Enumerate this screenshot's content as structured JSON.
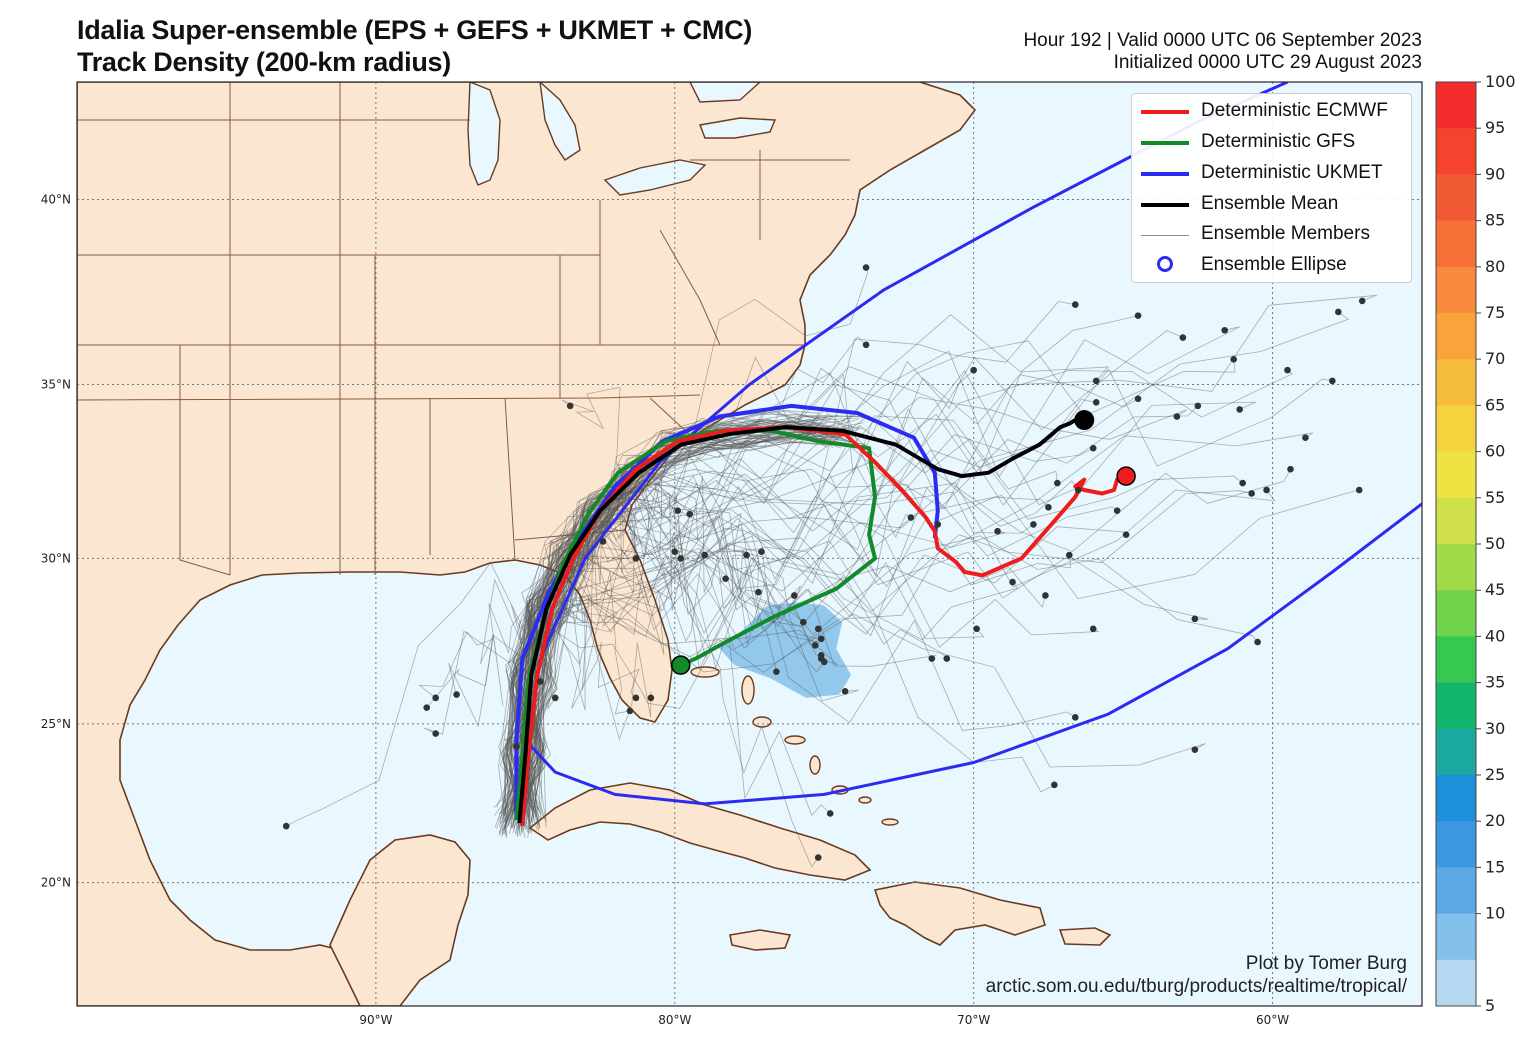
{
  "title": {
    "line1": "Idalia Super-ensemble (EPS + GEFS + UKMET + CMC)",
    "line2": "Track Density (200-km radius)"
  },
  "valid": {
    "line1": "Hour 192 | Valid 0000 UTC 06 September 2023",
    "line2": "Initialized 0000 UTC 29 August 2023"
  },
  "map": {
    "lon_range": [
      -100,
      -55
    ],
    "lat_range": [
      16,
      43
    ],
    "lon_ticks": [
      {
        "lon": -90,
        "label": "90°W"
      },
      {
        "lon": -80,
        "label": "80°W"
      },
      {
        "lon": -70,
        "label": "70°W"
      },
      {
        "lon": -60,
        "label": "60°W"
      }
    ],
    "lat_ticks": [
      {
        "lat": 40,
        "label": "40°N"
      },
      {
        "lat": 35,
        "label": "35°N"
      },
      {
        "lat": 30,
        "label": "30°N"
      },
      {
        "lat": 25,
        "label": "25°N"
      },
      {
        "lat": 20,
        "label": "20°N"
      }
    ],
    "colors": {
      "land": "#fbe7d1",
      "ocean": "#e9f8fe",
      "coast": "#6b3a1e",
      "border": "#8a5a3a",
      "grid": "#777777"
    }
  },
  "legend": {
    "items": [
      {
        "label": "Deterministic ECMWF",
        "color": "#ee1c1c",
        "kind": "line",
        "width": 4
      },
      {
        "label": "Deterministic GFS",
        "color": "#128a2a",
        "kind": "line",
        "width": 4
      },
      {
        "label": "Deterministic UKMET",
        "color": "#2b2bf2",
        "kind": "line",
        "width": 4
      },
      {
        "label": "Ensemble Mean",
        "color": "#000000",
        "kind": "line",
        "width": 4
      },
      {
        "label": "Ensemble Members",
        "color": "#8c8c8c",
        "kind": "line",
        "width": 1
      },
      {
        "label": "Ensemble Ellipse",
        "color": "#2b2bf2",
        "kind": "ring"
      }
    ]
  },
  "tracks": {
    "ecmwf": [
      [
        -85.1,
        21.8
      ],
      [
        -84.9,
        24.0
      ],
      [
        -84.6,
        26.5
      ],
      [
        -84.1,
        28.5
      ],
      [
        -83.4,
        30.0
      ],
      [
        -82.5,
        31.4
      ],
      [
        -81.3,
        32.6
      ],
      [
        -79.9,
        33.4
      ],
      [
        -78.3,
        33.7
      ],
      [
        -76.3,
        33.8
      ],
      [
        -74.3,
        33.6
      ],
      [
        -73.3,
        32.8
      ],
      [
        -72.4,
        32.0
      ],
      [
        -71.6,
        31.2
      ],
      [
        -71.3,
        30.8
      ],
      [
        -71.2,
        30.3
      ],
      [
        -70.6,
        29.9
      ],
      [
        -70.3,
        29.6
      ],
      [
        -69.7,
        29.5
      ],
      [
        -68.4,
        30.0
      ],
      [
        -67.4,
        31.0
      ],
      [
        -66.6,
        31.8
      ],
      [
        -66.3,
        32.3
      ],
      [
        -66.6,
        32.1
      ],
      [
        -66.3,
        32.0
      ],
      [
        -65.7,
        31.9
      ],
      [
        -65.3,
        32.0
      ],
      [
        -65.2,
        32.3
      ],
      [
        -64.9,
        32.4
      ]
    ],
    "gfs": [
      [
        -85.3,
        22.0
      ],
      [
        -85.1,
        24.0
      ],
      [
        -84.9,
        26.3
      ],
      [
        -84.4,
        28.2
      ],
      [
        -83.7,
        29.9
      ],
      [
        -82.9,
        31.3
      ],
      [
        -81.9,
        32.5
      ],
      [
        -80.3,
        33.4
      ],
      [
        -78.6,
        33.7
      ],
      [
        -76.8,
        33.7
      ],
      [
        -75.2,
        33.4
      ],
      [
        -73.5,
        33.2
      ],
      [
        -73.3,
        31.8
      ],
      [
        -73.5,
        30.7
      ],
      [
        -73.3,
        30.0
      ],
      [
        -74.6,
        29.1
      ],
      [
        -76.6,
        28.3
      ],
      [
        -78.3,
        27.5
      ],
      [
        -79.3,
        27.0
      ],
      [
        -79.8,
        26.8
      ]
    ],
    "ukmet": [
      [
        -85.3,
        22.0
      ],
      [
        -85.3,
        24.5
      ],
      [
        -85.1,
        27.0
      ],
      [
        -84.2,
        29.0
      ],
      [
        -83.2,
        30.6
      ],
      [
        -82.0,
        32.1
      ],
      [
        -80.4,
        33.4
      ],
      [
        -78.5,
        34.1
      ],
      [
        -76.1,
        34.4
      ],
      [
        -73.9,
        34.2
      ],
      [
        -72.0,
        33.5
      ],
      [
        -71.3,
        32.5
      ],
      [
        -71.2,
        31.4
      ],
      [
        -71.3,
        30.6
      ]
    ],
    "mean": [
      [
        -85.2,
        21.9
      ],
      [
        -85.0,
        24.0
      ],
      [
        -84.8,
        26.5
      ],
      [
        -84.3,
        28.5
      ],
      [
        -83.5,
        30.1
      ],
      [
        -82.5,
        31.4
      ],
      [
        -81.2,
        32.5
      ],
      [
        -79.8,
        33.3
      ],
      [
        -78.2,
        33.6
      ],
      [
        -76.3,
        33.8
      ],
      [
        -74.4,
        33.7
      ],
      [
        -72.6,
        33.3
      ],
      [
        -71.2,
        32.6
      ],
      [
        -70.4,
        32.4
      ],
      [
        -69.5,
        32.5
      ],
      [
        -68.7,
        32.9
      ],
      [
        -67.8,
        33.3
      ],
      [
        -67.1,
        33.8
      ],
      [
        -66.8,
        33.9
      ],
      [
        -66.4,
        34.1
      ],
      [
        -66.3,
        34.0
      ]
    ],
    "ellipse": [
      [
        -84.9,
        24.4
      ],
      [
        -84.0,
        23.5
      ],
      [
        -82.0,
        22.8
      ],
      [
        -79.0,
        22.5
      ],
      [
        -75.0,
        22.8
      ],
      [
        -70.0,
        23.8
      ],
      [
        -65.5,
        25.3
      ],
      [
        -61.5,
        27.3
      ],
      [
        -58.0,
        29.6
      ],
      [
        -55.0,
        31.6
      ]
    ],
    "ellipse_north": [
      [
        -84.9,
        24.4
      ],
      [
        -84.5,
        27.0
      ],
      [
        -83.0,
        30.0
      ],
      [
        -80.5,
        32.8
      ],
      [
        -77.5,
        35.0
      ],
      [
        -73.0,
        37.6
      ],
      [
        -68.0,
        39.8
      ],
      [
        -62.5,
        42.0
      ],
      [
        -59.5,
        43.0
      ]
    ]
  },
  "points": {
    "ecmwf_end": [
      -64.9,
      32.4
    ],
    "gfs_end": [
      -79.8,
      26.8
    ],
    "mean_end": [
      -66.3,
      34.0
    ],
    "member_ends": [
      [
        -73.6,
        38.2
      ],
      [
        -73.6,
        36.1
      ],
      [
        -70.0,
        35.4
      ],
      [
        -66.6,
        37.2
      ],
      [
        -64.5,
        36.9
      ],
      [
        -63.0,
        36.3
      ],
      [
        -61.6,
        36.5
      ],
      [
        -61.3,
        35.7
      ],
      [
        -59.5,
        35.4
      ],
      [
        -57.8,
        37.0
      ],
      [
        -57.0,
        37.3
      ],
      [
        -58.0,
        35.1
      ],
      [
        -65.9,
        35.1
      ],
      [
        -65.9,
        34.5
      ],
      [
        -64.5,
        34.6
      ],
      [
        -62.5,
        34.4
      ],
      [
        -63.2,
        34.1
      ],
      [
        -61.1,
        34.3
      ],
      [
        -58.9,
        33.5
      ],
      [
        -66.0,
        33.2
      ],
      [
        -67.2,
        32.2
      ],
      [
        -61.0,
        32.2
      ],
      [
        -60.7,
        31.9
      ],
      [
        -60.2,
        32.0
      ],
      [
        -59.4,
        32.6
      ],
      [
        -57.1,
        32.0
      ],
      [
        -65.2,
        31.4
      ],
      [
        -67.5,
        31.5
      ],
      [
        -68.0,
        31.0
      ],
      [
        -69.2,
        30.8
      ],
      [
        -71.2,
        31.0
      ],
      [
        -72.1,
        31.2
      ],
      [
        -64.9,
        30.7
      ],
      [
        -66.8,
        30.1
      ],
      [
        -68.7,
        29.3
      ],
      [
        -67.6,
        28.9
      ],
      [
        -66.0,
        27.9
      ],
      [
        -62.6,
        28.2
      ],
      [
        -60.5,
        27.5
      ],
      [
        -69.9,
        27.9
      ],
      [
        -70.9,
        27.0
      ],
      [
        -71.4,
        27.0
      ],
      [
        -66.6,
        25.2
      ],
      [
        -62.6,
        24.2
      ],
      [
        -79.5,
        31.3
      ],
      [
        -79.9,
        31.4
      ],
      [
        -80.0,
        30.2
      ],
      [
        -79.8,
        30.0
      ],
      [
        -79.0,
        30.1
      ],
      [
        -77.6,
        30.1
      ],
      [
        -77.1,
        30.2
      ],
      [
        -78.3,
        29.4
      ],
      [
        -77.2,
        29.0
      ],
      [
        -76.0,
        28.9
      ],
      [
        -75.7,
        28.1
      ],
      [
        -75.2,
        27.9
      ],
      [
        -75.1,
        27.6
      ],
      [
        -75.3,
        27.4
      ],
      [
        -75.1,
        27.1
      ],
      [
        -76.6,
        26.6
      ],
      [
        -75.1,
        27.0
      ],
      [
        -75.0,
        26.9
      ],
      [
        -74.3,
        26.0
      ],
      [
        -81.3,
        30.0
      ],
      [
        -82.4,
        30.5
      ],
      [
        -83.5,
        34.4
      ],
      [
        -81.3,
        25.8
      ],
      [
        -81.5,
        25.4
      ],
      [
        -80.8,
        25.8
      ],
      [
        -84.5,
        26.3
      ],
      [
        -84.0,
        25.8
      ],
      [
        -88.0,
        25.8
      ],
      [
        -87.3,
        25.9
      ],
      [
        -88.3,
        25.5
      ],
      [
        -88.0,
        24.7
      ],
      [
        -85.3,
        24.3
      ],
      [
        -93.0,
        21.8
      ],
      [
        -75.2,
        20.8
      ],
      [
        -74.8,
        22.2
      ],
      [
        -67.3,
        23.1
      ],
      [
        -66.5,
        32.0
      ]
    ]
  },
  "density_contour": [
    [
      -77.8,
      27.8
    ],
    [
      -76.9,
      28.6
    ],
    [
      -75.9,
      28.7
    ],
    [
      -75.0,
      28.6
    ],
    [
      -74.4,
      28.1
    ],
    [
      -74.6,
      27.3
    ],
    [
      -74.1,
      26.5
    ],
    [
      -74.5,
      25.9
    ],
    [
      -75.6,
      25.8
    ],
    [
      -76.8,
      26.4
    ],
    [
      -78.0,
      26.8
    ],
    [
      -78.6,
      27.4
    ]
  ],
  "colorbar": {
    "ticks": [
      "100",
      "95",
      "90",
      "85",
      "80",
      "75",
      "70",
      "65",
      "60",
      "55",
      "50",
      "45",
      "40",
      "35",
      "30",
      "25",
      "20",
      "15",
      "10",
      "5"
    ],
    "colors": [
      "#f42c2c",
      "#f5432f",
      "#f25a36",
      "#f57138",
      "#f78a3c",
      "#f8a43b",
      "#f5bb3c",
      "#f6d43f",
      "#eee342",
      "#cfe04a",
      "#a2db49",
      "#6fd44c",
      "#37c94f",
      "#13b46c",
      "#1aa8a0",
      "#1e8fdb",
      "#3c97e2",
      "#5ea9e5",
      "#82bfe9",
      "#b6d9f2"
    ]
  },
  "credit": {
    "line1": "Plot by Tomer Burg",
    "line2": "arctic.som.ou.edu/tburg/products/realtime/tropical/"
  }
}
